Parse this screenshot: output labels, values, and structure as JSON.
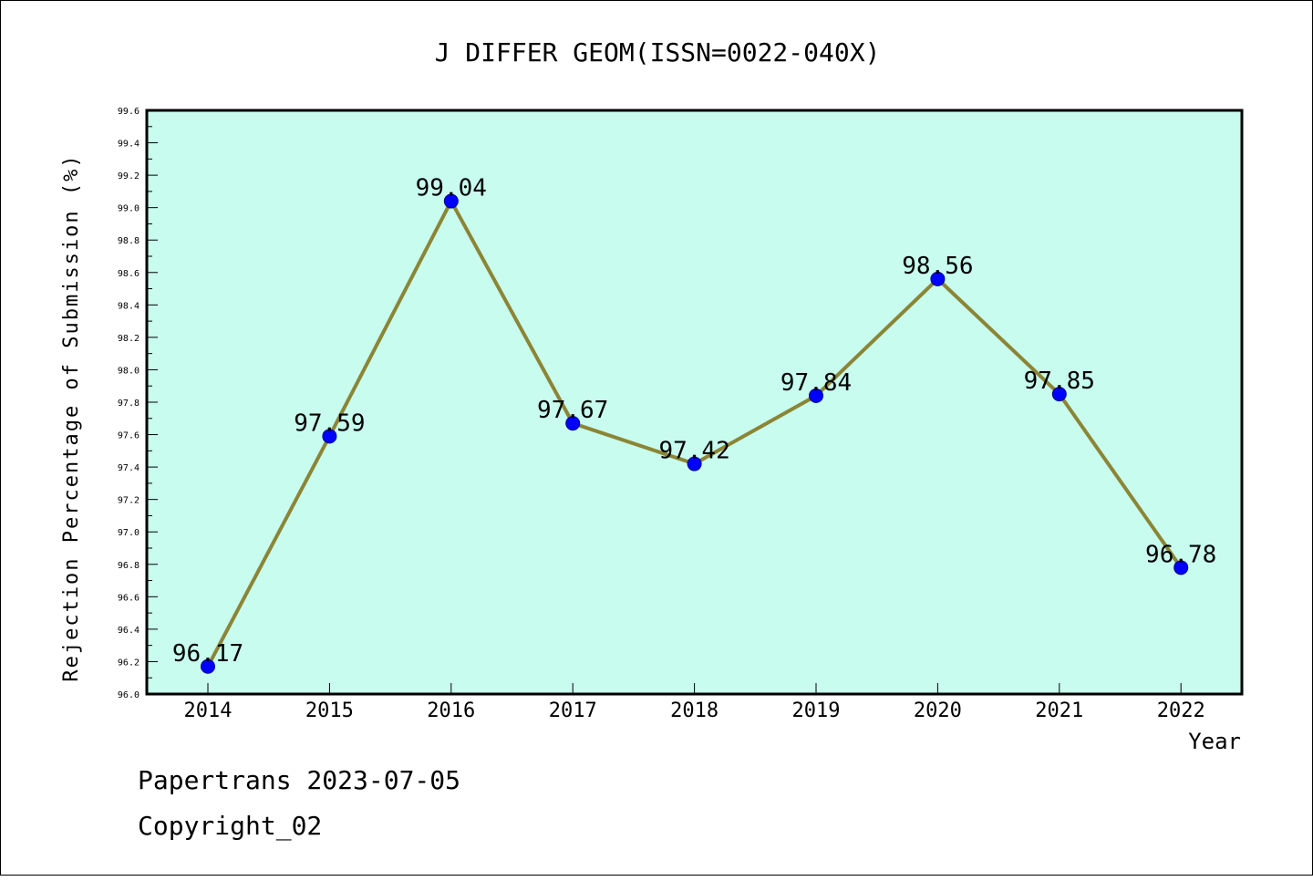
{
  "chart_data": {
    "type": "line",
    "title": "J DIFFER GEOM(ISSN=0022-040X)",
    "xlabel": "Year",
    "ylabel": "Rejection Percentage of Submission (%)",
    "categories": [
      "2014",
      "2015",
      "2016",
      "2017",
      "2018",
      "2019",
      "2020",
      "2021",
      "2022"
    ],
    "series": [
      {
        "values": [
          96.17,
          97.59,
          99.04,
          97.67,
          97.42,
          97.84,
          98.56,
          97.85,
          96.78
        ],
        "labels": [
          "96.17",
          "97.59",
          "99.04",
          "97.67",
          "97.42",
          "97.84",
          "98.56",
          "97.85",
          "96.78"
        ]
      }
    ],
    "ylim": [
      96.0,
      99.6
    ],
    "yticks": [
      "96.0",
      "96.2",
      "96.4",
      "96.6",
      "96.8",
      "97.0",
      "97.2",
      "97.4",
      "97.6",
      "97.8",
      "98.0",
      "98.2",
      "98.4",
      "98.6",
      "98.8",
      "99.0",
      "99.2",
      "99.4",
      "99.6"
    ],
    "grid": false,
    "colors": {
      "plot_background": "#c8fcee",
      "line": "#8b8535",
      "marker": "#0000ff"
    }
  },
  "footer": {
    "line1": "Papertrans 2023-07-05",
    "line2": "Copyright_02"
  }
}
